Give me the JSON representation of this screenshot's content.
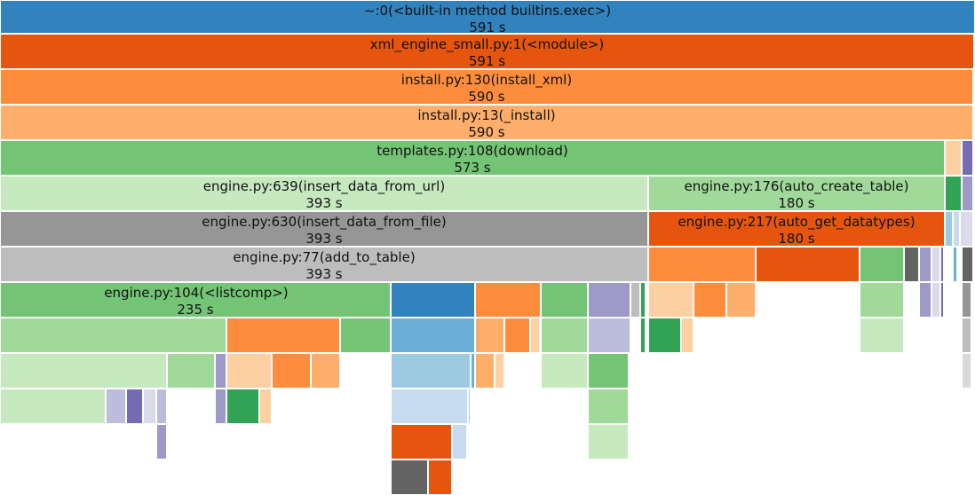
{
  "frames": [
    {
      "name": "~:0(<built-in method builtins.exec>)",
      "time": "591 s",
      "color": "#3182bd"
    },
    {
      "name": "xml_engine_small.py:1(<module>)",
      "time": "591 s",
      "color": "#e6550d"
    },
    {
      "name": "install.py:130(install_xml)",
      "time": "590 s",
      "color": "#fd8d3c"
    },
    {
      "name": "install.py:13(_install)",
      "time": "590 s",
      "color": "#fdae6b"
    },
    {
      "name": "templates.py:108(download)",
      "time": "573 s",
      "color": "#74c476"
    },
    {
      "name": "engine.py:639(insert_data_from_url)",
      "time": "393 s",
      "color": "#c7e9c0"
    },
    {
      "name": "engine.py:176(auto_create_table)",
      "time": "180 s",
      "color": "#a1d99b"
    },
    {
      "name": "engine.py:630(insert_data_from_file)",
      "time": "393 s",
      "color": "#969696"
    },
    {
      "name": "engine.py:217(auto_get_datatypes)",
      "time": "180 s",
      "color": "#e6550d"
    },
    {
      "name": "engine.py:77(add_to_table)",
      "time": "393 s",
      "color": "#bdbdbd"
    },
    {
      "name": "engine.py:104(<listcomp>)",
      "time": "235 s",
      "color": "#74c476"
    }
  ]
}
